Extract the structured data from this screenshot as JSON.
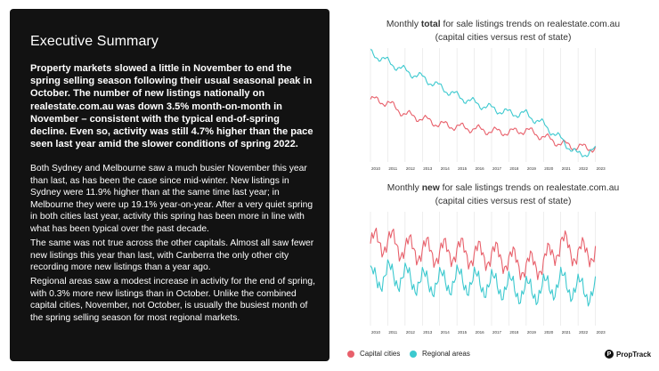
{
  "summary": {
    "title": "Executive Summary",
    "lead": "Property markets slowed a little in November to end the spring selling season following their usual seasonal peak in October. The number of new listings nationally on realestate.com.au was down 3.5% month-on-month in November – consistent with the typical end-of-spring decline. Even so, activity was still 4.7% higher than the pace seen last year amid the slower conditions of spring 2022.",
    "p1": "Both Sydney and Melbourne saw a much busier November this year than last, as has been the case since mid-winter. New listings in Sydney were 11.9% higher than at the same time last year; in Melbourne they were up 19.1% year-on-year. After a very quiet spring in both cities last year, activity this spring has been more in line with what has been typical over the past decade.",
    "p2": "The same was not true across the other capitals. Almost all saw fewer new listings this year than last, with Canberra the only other city recording more new listings than a year ago.",
    "p3": "Regional areas saw a modest increase in activity for the end of spring, with 0.3% more new listings than in October. Unlike the combined capital cities, November, not October, is usually the busiest month of the spring selling season for most regional markets."
  },
  "chart1": {
    "title_pre": "Monthly ",
    "title_bold": "total",
    "title_post": " for sale listings trends on realestate.com.au",
    "subtitle": "(capital cities versus rest of state)"
  },
  "chart2": {
    "title_pre": "Monthly ",
    "title_bold": "new",
    "title_post": " for sale listings trends on realestate.com.au",
    "subtitle": "(capital cities versus rest of state)"
  },
  "legend": {
    "capital": "Capital cities",
    "regional": "Regional areas"
  },
  "brand": {
    "name": "PropTrack",
    "logo_glyph": "P"
  },
  "colors": {
    "capital": "#e8606b",
    "regional": "#3cc9cf"
  },
  "chart_data": [
    {
      "type": "line",
      "x": [
        "2010",
        "2011",
        "2012",
        "2013",
        "2014",
        "2015",
        "2016",
        "2017",
        "2018",
        "2019",
        "2020",
        "2021",
        "2022",
        "2023"
      ],
      "series": [
        {
          "name": "Capital cities",
          "values": [
            0.55,
            0.52,
            0.42,
            0.38,
            0.33,
            0.31,
            0.29,
            0.27,
            0.26,
            0.28,
            0.22,
            0.16,
            0.13,
            0.12
          ]
        },
        {
          "name": "Regional areas",
          "values": [
            0.96,
            0.88,
            0.8,
            0.74,
            0.66,
            0.58,
            0.52,
            0.47,
            0.43,
            0.42,
            0.33,
            0.2,
            0.06,
            0.1
          ]
        }
      ]
    },
    {
      "type": "line",
      "x": [
        "2010",
        "2011",
        "2012",
        "2013",
        "2014",
        "2015",
        "2016",
        "2017",
        "2018",
        "2019",
        "2020",
        "2021",
        "2022",
        "2023"
      ],
      "series": [
        {
          "name": "Capital cities",
          "values": [
            0.72,
            0.74,
            0.68,
            0.66,
            0.64,
            0.66,
            0.62,
            0.62,
            0.58,
            0.52,
            0.55,
            0.72,
            0.63,
            0.66
          ]
        },
        {
          "name": "Regional areas",
          "values": [
            0.4,
            0.45,
            0.42,
            0.38,
            0.38,
            0.4,
            0.38,
            0.36,
            0.34,
            0.3,
            0.32,
            0.38,
            0.32,
            0.3
          ]
        }
      ]
    }
  ]
}
